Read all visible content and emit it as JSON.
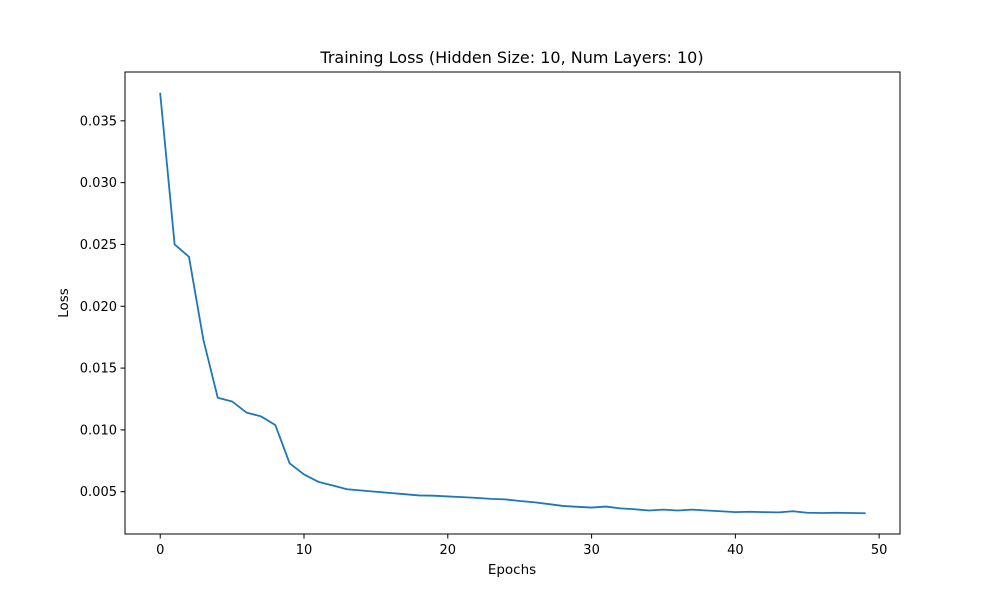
{
  "chart_data": {
    "type": "line",
    "title": "Training Loss (Hidden Size: 10, Num Layers: 10)",
    "xlabel": "Epochs",
    "ylabel": "Loss",
    "xlim": [
      -2.45,
      51.45
    ],
    "ylim": [
      0.00158,
      0.03895
    ],
    "xticks": [
      0,
      10,
      20,
      30,
      40,
      50
    ],
    "xtick_labels": [
      "0",
      "10",
      "20",
      "30",
      "40",
      "50"
    ],
    "yticks": [
      0.005,
      0.01,
      0.015,
      0.02,
      0.025,
      0.03,
      0.035
    ],
    "ytick_labels": [
      "0.005",
      "0.010",
      "0.015",
      "0.020",
      "0.025",
      "0.030",
      "0.035"
    ],
    "grid": false,
    "line_color": "#1f77b4",
    "series": [
      {
        "x": [
          0,
          1,
          2,
          3,
          4,
          5,
          6,
          7,
          8,
          9,
          10,
          11,
          12,
          13,
          14,
          15,
          16,
          17,
          18,
          19,
          20,
          21,
          22,
          23,
          24,
          25,
          26,
          27,
          28,
          29,
          30,
          31,
          32,
          33,
          34,
          35,
          36,
          37,
          38,
          39,
          40,
          41,
          42,
          43,
          44,
          45,
          46,
          47,
          48,
          49
        ],
        "values": [
          0.0372,
          0.025,
          0.024,
          0.0173,
          0.0126,
          0.0123,
          0.0114,
          0.0111,
          0.0104,
          0.0073,
          0.0064,
          0.0058,
          0.0055,
          0.0052,
          0.0051,
          0.005,
          0.0049,
          0.0048,
          0.0047,
          0.00468,
          0.00462,
          0.00456,
          0.0045,
          0.00442,
          0.00438,
          0.00425,
          0.00415,
          0.004,
          0.00385,
          0.00378,
          0.00372,
          0.0038,
          0.00365,
          0.00358,
          0.00348,
          0.00355,
          0.00348,
          0.00355,
          0.00348,
          0.00342,
          0.00335,
          0.00338,
          0.00335,
          0.00333,
          0.00342,
          0.0033,
          0.00328,
          0.0033,
          0.00328,
          0.00326
        ]
      }
    ]
  }
}
